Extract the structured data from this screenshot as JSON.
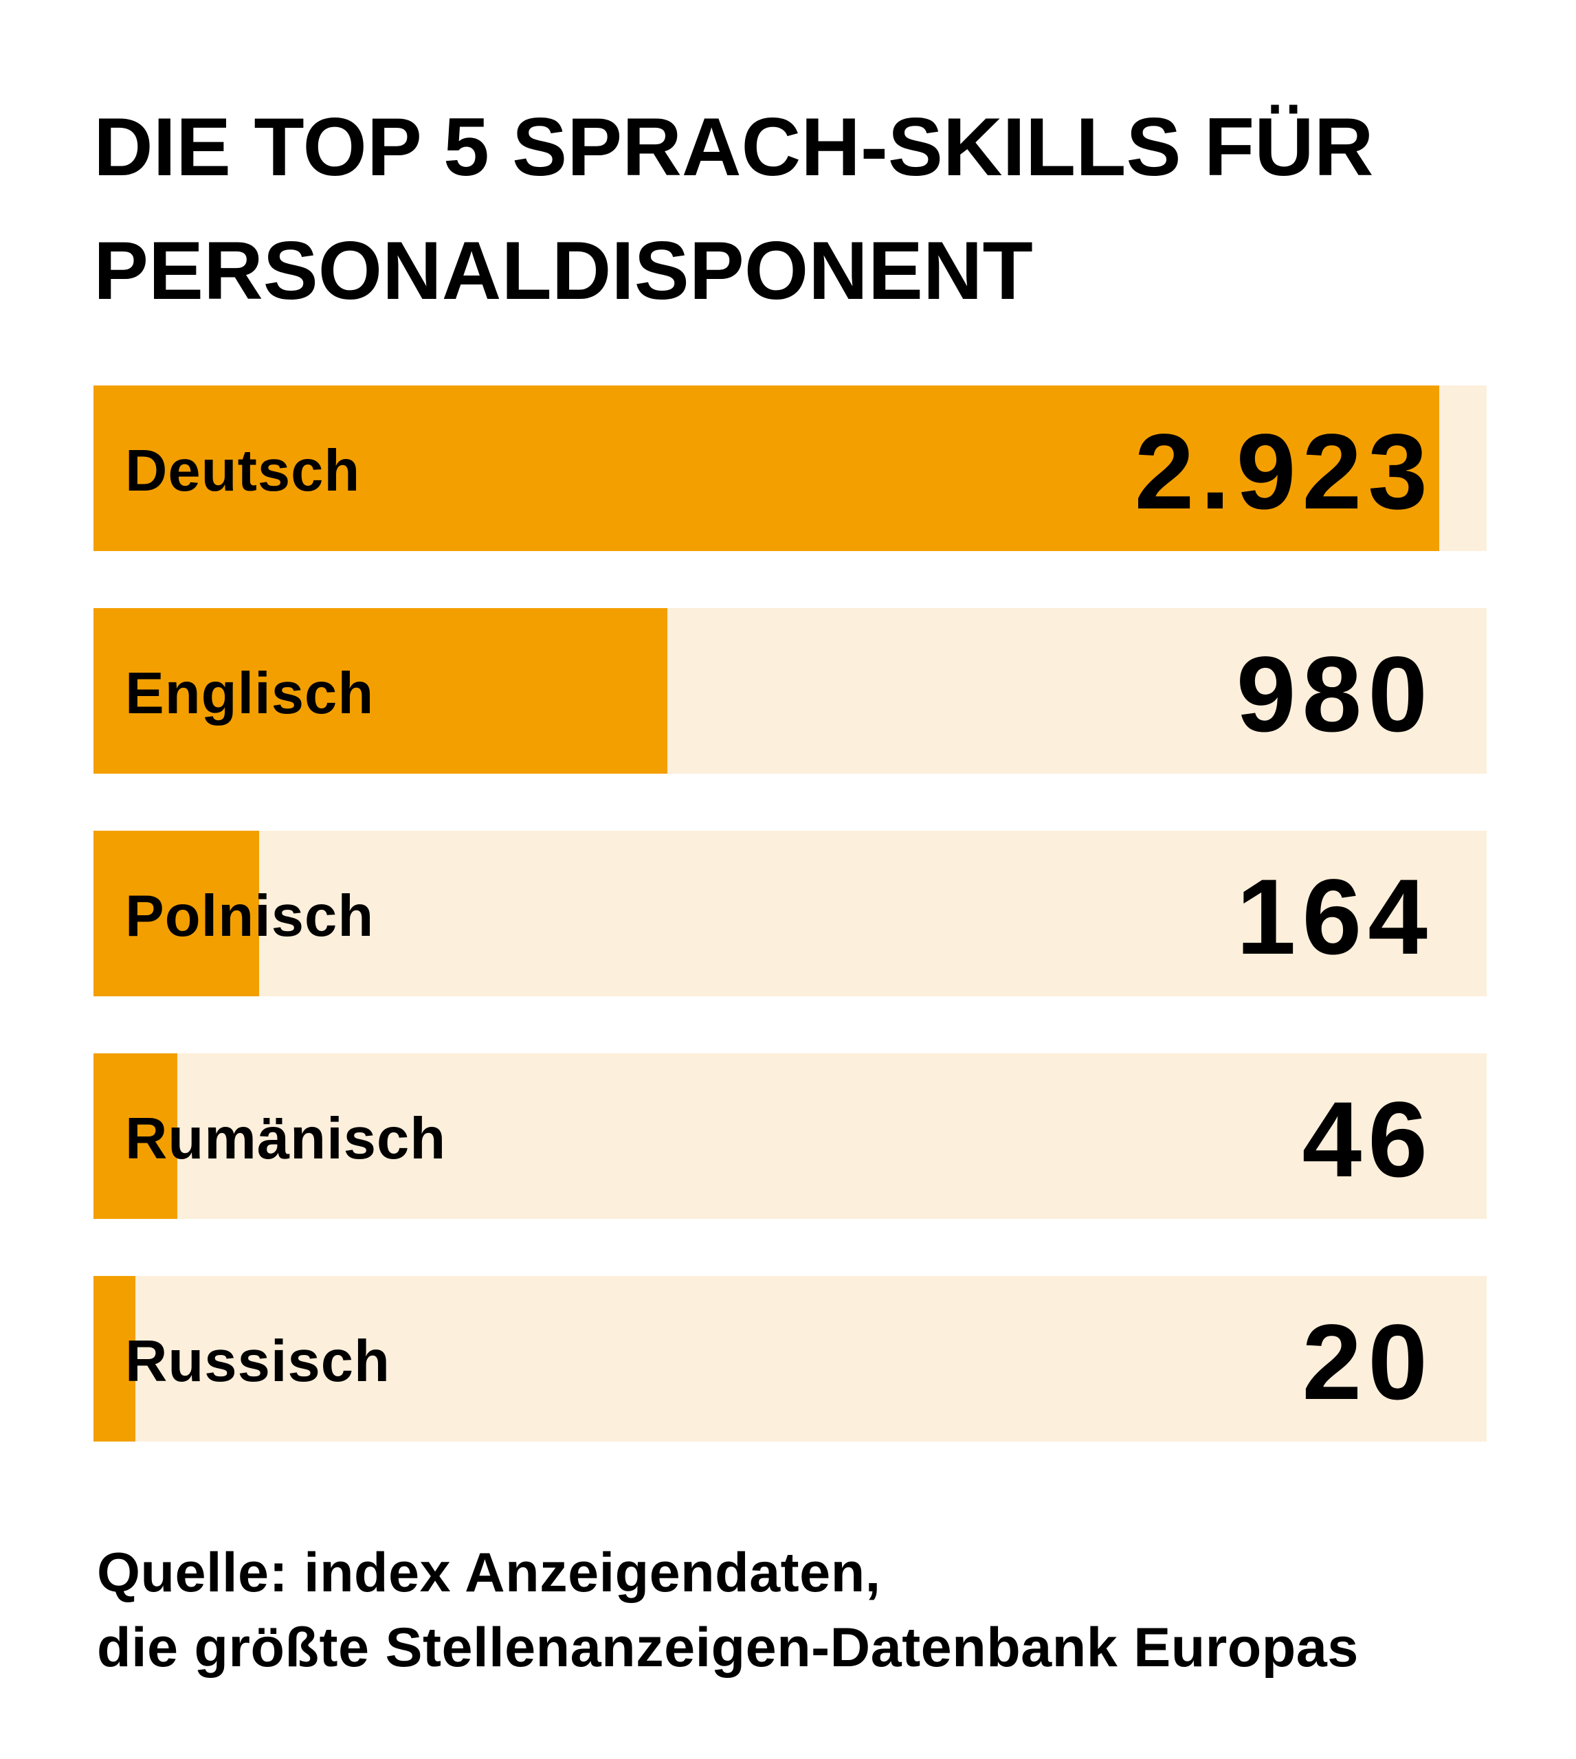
{
  "title": {
    "line1": "DIE TOP 5 SPRACH-SKILLS FÜR",
    "line2": "PERSONALDISPONENT"
  },
  "colors": {
    "bar_fill": "#F39F00",
    "bar_track": "#FCEFDB",
    "text": "#000000",
    "background": "#FFFFFF"
  },
  "rows": [
    {
      "label": "Deutsch",
      "value": "2.923",
      "fill_percent": 96.6
    },
    {
      "label": "Englisch",
      "value": "980",
      "fill_percent": 41.2
    },
    {
      "label": "Polnisch",
      "value": "164",
      "fill_percent": 11.9
    },
    {
      "label": "Rumänisch",
      "value": "46",
      "fill_percent": 6.0
    },
    {
      "label": "Russisch",
      "value": "20",
      "fill_percent": 3.0
    }
  ],
  "source": {
    "line1": "Quelle: index Anzeigendaten,",
    "line2": "die größte Stellenanzeigen-Datenbank Europas"
  },
  "chart_data": {
    "type": "bar",
    "orientation": "horizontal",
    "title": "DIE TOP 5 SPRACH-SKILLS FÜR PERSONALDISPONENT",
    "categories": [
      "Deutsch",
      "Englisch",
      "Polnisch",
      "Rumänisch",
      "Russisch"
    ],
    "values": [
      2923,
      980,
      164,
      46,
      20
    ],
    "value_labels": [
      "2.923",
      "980",
      "164",
      "46",
      "20"
    ],
    "xlabel": "",
    "ylabel": "",
    "grid": false,
    "legend": null,
    "annotations": [
      "Quelle: index Anzeigendaten, die größte Stellenanzeigen-Datenbank Europas"
    ]
  }
}
